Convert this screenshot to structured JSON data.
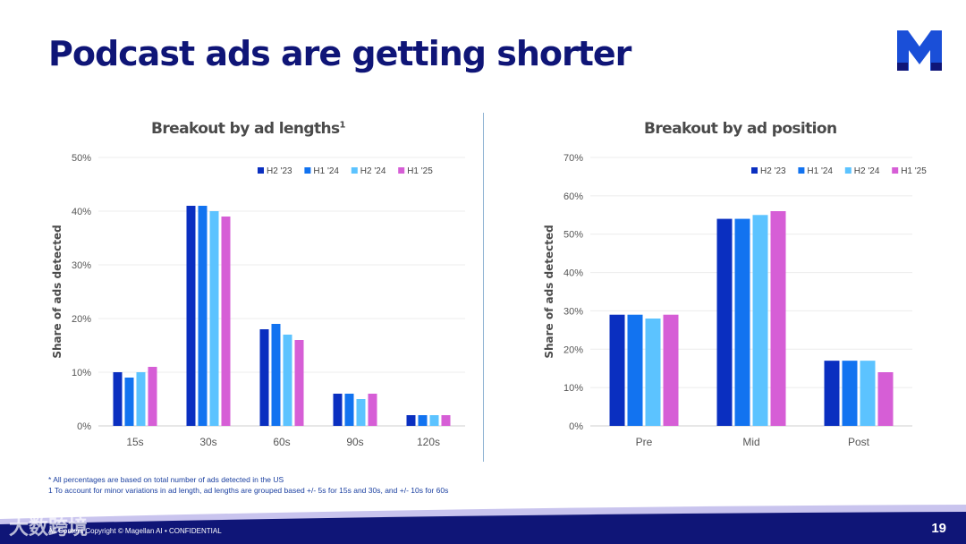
{
  "slide": {
    "title": "Podcast ads are getting shorter",
    "footnote_1": "* All percentages are based on total number of ads detected in the US",
    "footnote_2": "1 To account for minor variations in ad length, ad lengths are grouped based +/- 5s for 15s and 30s, and +/- 10s for 60s",
    "footer": "All Content Copyright © Magellan AI • CONFIDENTIAL",
    "page_number": "19",
    "watermark": "大数跨境",
    "colors": {
      "navy": "#0f1577",
      "accent": "#0f1577"
    }
  },
  "chart_data": [
    {
      "type": "bar",
      "title": "Breakout by ad lengths",
      "title_superscript": "1",
      "ylabel": "Share of ads detected",
      "xlabel": "",
      "ylim": [
        0,
        50
      ],
      "yticks": [
        "0%",
        "10%",
        "20%",
        "30%",
        "40%",
        "50%"
      ],
      "categories": [
        "15s",
        "30s",
        "60s",
        "90s",
        "120s"
      ],
      "series": [
        {
          "name": "H2 '23",
          "color": "#0a2fc0",
          "values": [
            10,
            41,
            18,
            6,
            2
          ]
        },
        {
          "name": "H1 '24",
          "color": "#1273f0",
          "values": [
            9,
            41,
            19,
            6,
            2
          ]
        },
        {
          "name": "H2 '24",
          "color": "#5cc3ff",
          "values": [
            10,
            40,
            17,
            5,
            2
          ]
        },
        {
          "name": "H1 '25",
          "color": "#d65ed6",
          "values": [
            11,
            39,
            16,
            6,
            2
          ]
        }
      ],
      "legend": "top-right",
      "grid": true
    },
    {
      "type": "bar",
      "title": "Breakout by ad position",
      "ylabel": "Share of ads detected",
      "xlabel": "",
      "ylim": [
        0,
        70
      ],
      "yticks": [
        "0%",
        "10%",
        "20%",
        "30%",
        "40%",
        "50%",
        "60%",
        "70%"
      ],
      "categories": [
        "Pre",
        "Mid",
        "Post"
      ],
      "series": [
        {
          "name": "H2 '23",
          "color": "#0a2fc0",
          "values": [
            29,
            54,
            17
          ]
        },
        {
          "name": "H1 '24",
          "color": "#1273f0",
          "values": [
            29,
            54,
            17
          ]
        },
        {
          "name": "H2 '24",
          "color": "#5cc3ff",
          "values": [
            28,
            55,
            17
          ]
        },
        {
          "name": "H1 '25",
          "color": "#d65ed6",
          "values": [
            29,
            56,
            14
          ]
        }
      ],
      "legend": "top-right",
      "grid": true
    }
  ]
}
